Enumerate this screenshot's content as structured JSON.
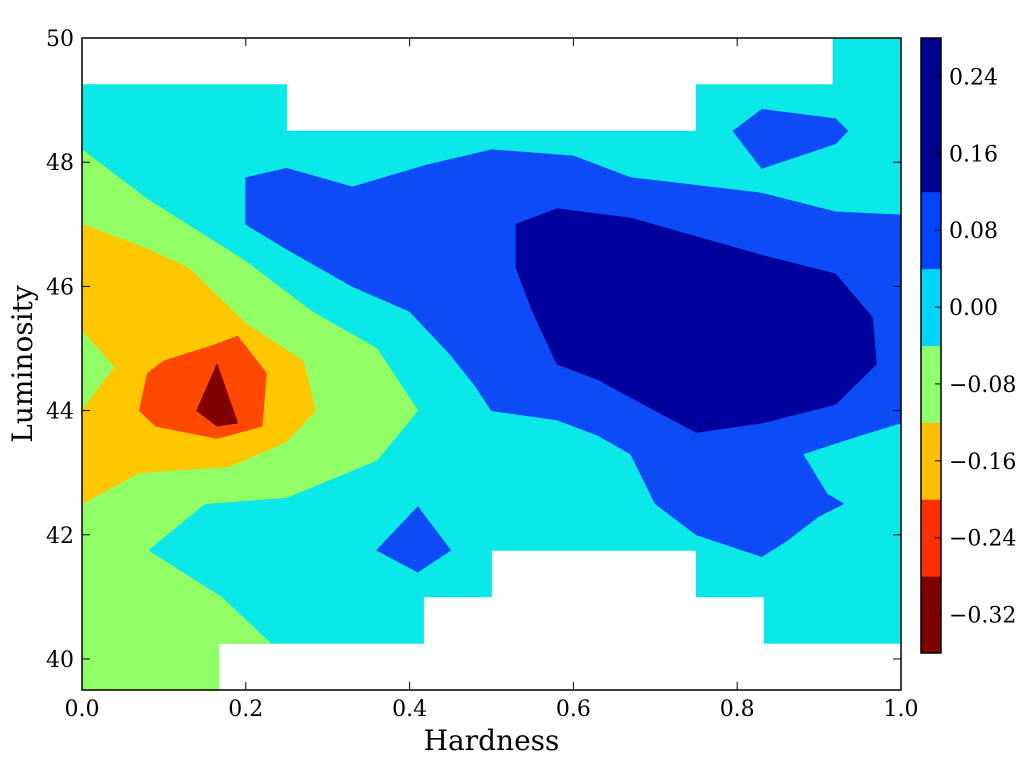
{
  "chart_data": {
    "type": "contour",
    "title": "",
    "xlabel": "Hardness",
    "ylabel": "Luminosity",
    "xlim": [
      0.0,
      1.0
    ],
    "ylim": [
      39.5,
      50.0
    ],
    "xticks": [
      0.0,
      0.2,
      0.4,
      0.6,
      0.8,
      1.0
    ],
    "xtick_labels": [
      "0.0",
      "0.2",
      "0.4",
      "0.6",
      "0.8",
      "1.0"
    ],
    "yticks": [
      40,
      42,
      44,
      46,
      48,
      50
    ],
    "ytick_labels": [
      "40",
      "42",
      "44",
      "46",
      "48",
      "50"
    ],
    "colormap": "jet",
    "grid": false,
    "colorbar": {
      "range": [
        -0.36,
        0.28
      ],
      "levels": [
        -0.36,
        -0.28,
        -0.2,
        -0.12,
        -0.04,
        0.04,
        0.12,
        0.2,
        0.28
      ],
      "band_colors": [
        "#7f0000",
        "#ff3000",
        "#ffbf00",
        "#90ff70",
        "#00d4ff",
        "#0044ff",
        "#00008f",
        "#00008f"
      ],
      "ticks": [
        0.24,
        0.16,
        0.08,
        0.0,
        -0.08,
        -0.16,
        -0.24,
        -0.32
      ],
      "tick_labels": [
        "0.24",
        "0.16",
        "0.08",
        "0.00",
        "−0.08",
        "−0.16",
        "−0.24",
        "−0.32"
      ]
    },
    "regions": [
      {
        "name": "coverage",
        "color": "#0ae8e8",
        "points": [
          [
            0.0,
            39.5
          ],
          [
            0.167,
            39.5
          ],
          [
            0.167,
            40.25
          ],
          [
            0.417,
            40.25
          ],
          [
            0.417,
            41.0
          ],
          [
            0.5,
            41.0
          ],
          [
            0.5,
            41.75
          ],
          [
            0.75,
            41.75
          ],
          [
            0.75,
            41.0
          ],
          [
            0.833,
            41.0
          ],
          [
            0.833,
            40.25
          ],
          [
            1.0,
            40.25
          ],
          [
            1.0,
            50.0
          ],
          [
            0.917,
            50.0
          ],
          [
            0.917,
            49.25
          ],
          [
            0.75,
            49.25
          ],
          [
            0.75,
            48.5
          ],
          [
            0.25,
            48.5
          ],
          [
            0.25,
            49.25
          ],
          [
            0.0,
            49.25
          ]
        ]
      },
      {
        "name": "green-band",
        "color": "#92fe66",
        "points": [
          [
            0.0,
            39.5
          ],
          [
            0.167,
            39.5
          ],
          [
            0.167,
            40.25
          ],
          [
            0.23,
            40.25
          ],
          [
            0.17,
            41.0
          ],
          [
            0.08,
            41.75
          ],
          [
            0.15,
            42.5
          ],
          [
            0.25,
            42.6
          ],
          [
            0.36,
            43.2
          ],
          [
            0.41,
            44.0
          ],
          [
            0.36,
            45.0
          ],
          [
            0.28,
            45.6
          ],
          [
            0.2,
            46.4
          ],
          [
            0.08,
            47.4
          ],
          [
            0.0,
            48.2
          ]
        ]
      },
      {
        "name": "orange-band",
        "color": "#ffc700",
        "points": [
          [
            0.0,
            42.5
          ],
          [
            0.07,
            43.0
          ],
          [
            0.18,
            43.1
          ],
          [
            0.25,
            43.5
          ],
          [
            0.285,
            44.0
          ],
          [
            0.27,
            44.8
          ],
          [
            0.2,
            45.4
          ],
          [
            0.13,
            46.3
          ],
          [
            0.08,
            46.6
          ],
          [
            0.0,
            47.0
          ],
          [
            0.0,
            45.3
          ],
          [
            0.04,
            44.7
          ],
          [
            0.0,
            44.0
          ]
        ]
      },
      {
        "name": "red-band",
        "color": "#ff4800",
        "points": [
          [
            0.07,
            44.0
          ],
          [
            0.09,
            43.75
          ],
          [
            0.165,
            43.55
          ],
          [
            0.22,
            43.75
          ],
          [
            0.225,
            44.6
          ],
          [
            0.19,
            45.2
          ],
          [
            0.16,
            45.05
          ],
          [
            0.1,
            44.8
          ],
          [
            0.08,
            44.6
          ]
        ]
      },
      {
        "name": "darkred-band",
        "color": "#800000",
        "points": [
          [
            0.14,
            44.0
          ],
          [
            0.165,
            44.75
          ],
          [
            0.19,
            43.8
          ],
          [
            0.165,
            43.75
          ]
        ]
      },
      {
        "name": "blue-band-main",
        "color": "#0c4bf6",
        "points": [
          [
            0.2,
            47.75
          ],
          [
            0.25,
            47.9
          ],
          [
            0.33,
            47.6
          ],
          [
            0.42,
            47.95
          ],
          [
            0.5,
            48.2
          ],
          [
            0.6,
            48.1
          ],
          [
            0.67,
            47.75
          ],
          [
            0.83,
            47.5
          ],
          [
            0.92,
            47.2
          ],
          [
            1.0,
            47.15
          ],
          [
            1.0,
            43.8
          ],
          [
            0.95,
            43.6
          ],
          [
            0.88,
            43.3
          ],
          [
            0.91,
            42.65
          ],
          [
            0.93,
            42.5
          ],
          [
            0.9,
            42.3
          ],
          [
            0.86,
            41.9
          ],
          [
            0.83,
            41.65
          ],
          [
            0.75,
            42.0
          ],
          [
            0.7,
            42.5
          ],
          [
            0.67,
            43.3
          ],
          [
            0.63,
            43.6
          ],
          [
            0.58,
            43.85
          ],
          [
            0.5,
            44.0
          ],
          [
            0.48,
            44.4
          ],
          [
            0.45,
            44.9
          ],
          [
            0.4,
            45.6
          ],
          [
            0.33,
            46.0
          ],
          [
            0.25,
            46.6
          ],
          [
            0.2,
            47.0
          ]
        ]
      },
      {
        "name": "navy-band",
        "color": "#00009d",
        "points": [
          [
            0.53,
            47.0
          ],
          [
            0.58,
            47.25
          ],
          [
            0.67,
            47.1
          ],
          [
            0.75,
            46.8
          ],
          [
            0.83,
            46.5
          ],
          [
            0.92,
            46.2
          ],
          [
            0.965,
            45.5
          ],
          [
            0.97,
            44.75
          ],
          [
            0.92,
            44.1
          ],
          [
            0.83,
            43.8
          ],
          [
            0.75,
            43.65
          ],
          [
            0.7,
            44.0
          ],
          [
            0.63,
            44.5
          ],
          [
            0.58,
            44.75
          ],
          [
            0.55,
            45.6
          ],
          [
            0.53,
            46.3
          ]
        ]
      },
      {
        "name": "blue-island-top",
        "color": "#0c4bf6",
        "points": [
          [
            0.795,
            48.5
          ],
          [
            0.83,
            48.85
          ],
          [
            0.92,
            48.7
          ],
          [
            0.935,
            48.5
          ],
          [
            0.92,
            48.3
          ],
          [
            0.83,
            47.9
          ]
        ]
      },
      {
        "name": "blue-island-bottom",
        "color": "#0c4bf6",
        "points": [
          [
            0.36,
            41.75
          ],
          [
            0.41,
            42.45
          ],
          [
            0.45,
            41.75
          ],
          [
            0.41,
            41.4
          ]
        ]
      }
    ]
  }
}
